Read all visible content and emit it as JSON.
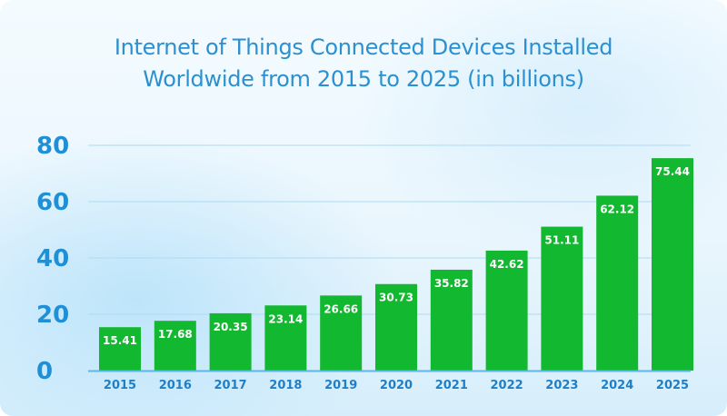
{
  "header": {
    "title_line_1": "Internet of Things Connected Devices Installed",
    "title_line_2": "Worldwide from 2015 to 2025 (in billions)"
  },
  "colors": {
    "bar": "#12b82f",
    "grid": "#aedaf2",
    "axis": "#5cb6e8",
    "title": "#2b90d0",
    "tick": "#1f8fd6"
  },
  "chart_data": {
    "type": "bar",
    "title": "Internet of Things Connected Devices Installed Worldwide from 2015 to 2025 (in billions)",
    "xlabel": "",
    "ylabel": "",
    "categories": [
      "2015",
      "2016",
      "2017",
      "2018",
      "2019",
      "2020",
      "2021",
      "2022",
      "2023",
      "2024",
      "2025"
    ],
    "values": [
      15.41,
      17.68,
      20.35,
      23.14,
      26.66,
      30.73,
      35.82,
      42.62,
      51.11,
      62.12,
      75.44
    ],
    "data_labels": [
      "15.41",
      "17.68",
      "20.35",
      "23.14",
      "26.66",
      "30.73",
      "35.82",
      "42.62",
      "51.11",
      "62.12",
      "75.44"
    ],
    "ylim": [
      0,
      80
    ],
    "yticks": [
      0,
      20,
      40,
      60,
      80
    ],
    "grid": true,
    "legend": "none"
  }
}
